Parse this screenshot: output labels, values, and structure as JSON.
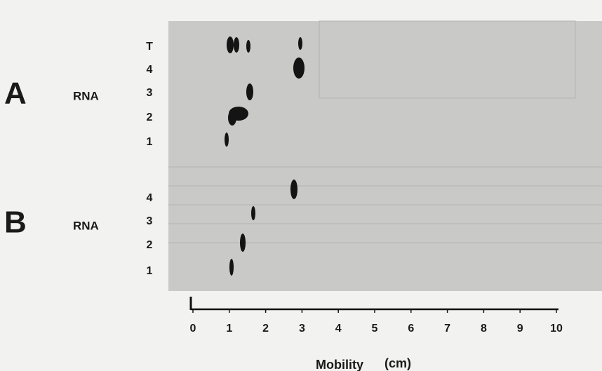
{
  "panels": [
    {
      "label": "A",
      "sample": "RNA",
      "lanes": [
        "T",
        "4",
        "3",
        "2",
        "1"
      ]
    },
    {
      "label": "B",
      "sample": "RNA",
      "lanes": [
        "4",
        "3",
        "2",
        "1"
      ]
    }
  ],
  "axis": {
    "label": "Mobility",
    "unit": "(cm)",
    "ticks": [
      0,
      1,
      2,
      3,
      4,
      5,
      6,
      7,
      8,
      9,
      10
    ]
  }
}
